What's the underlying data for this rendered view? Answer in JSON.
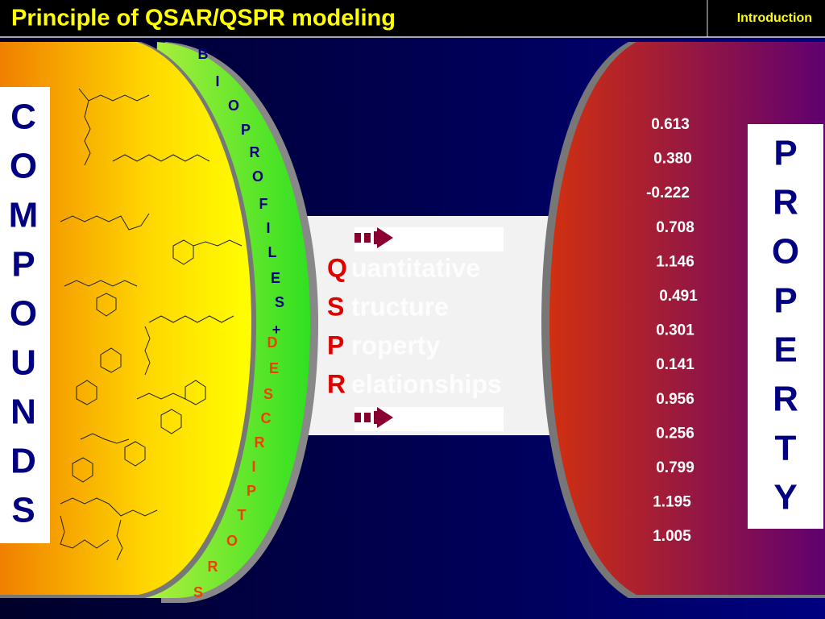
{
  "header": {
    "title": "Principle of QSAR/QSPR modeling",
    "section": "Introduction"
  },
  "compounds": {
    "letters": [
      "C",
      "O",
      "M",
      "P",
      "O",
      "U",
      "N",
      "D",
      "S"
    ]
  },
  "descriptors": {
    "letters": [
      "B",
      "I",
      "O",
      "P",
      "R",
      "O",
      "F",
      "I",
      "L",
      "E",
      "S",
      "+",
      "D",
      "E",
      "S",
      "C",
      "R",
      "I",
      "P",
      "T",
      "O",
      "R",
      "S"
    ]
  },
  "qspr": {
    "rows": [
      {
        "initial": "Q",
        "rest": "uantitative"
      },
      {
        "initial": "S",
        "rest": "tructure"
      },
      {
        "initial": "P",
        "rest": "roperty"
      },
      {
        "initial": "R",
        "rest": "elationships"
      }
    ]
  },
  "property": {
    "letters": [
      "P",
      "R",
      "O",
      "P",
      "E",
      "R",
      "T",
      "Y"
    ],
    "values": [
      "0.613",
      "0.380",
      "-0.222",
      "0.708",
      "1.146",
      "0.491",
      "0.301",
      "0.141",
      "0.956",
      "0.256",
      "0.799",
      "1.195",
      "1.005"
    ]
  }
}
